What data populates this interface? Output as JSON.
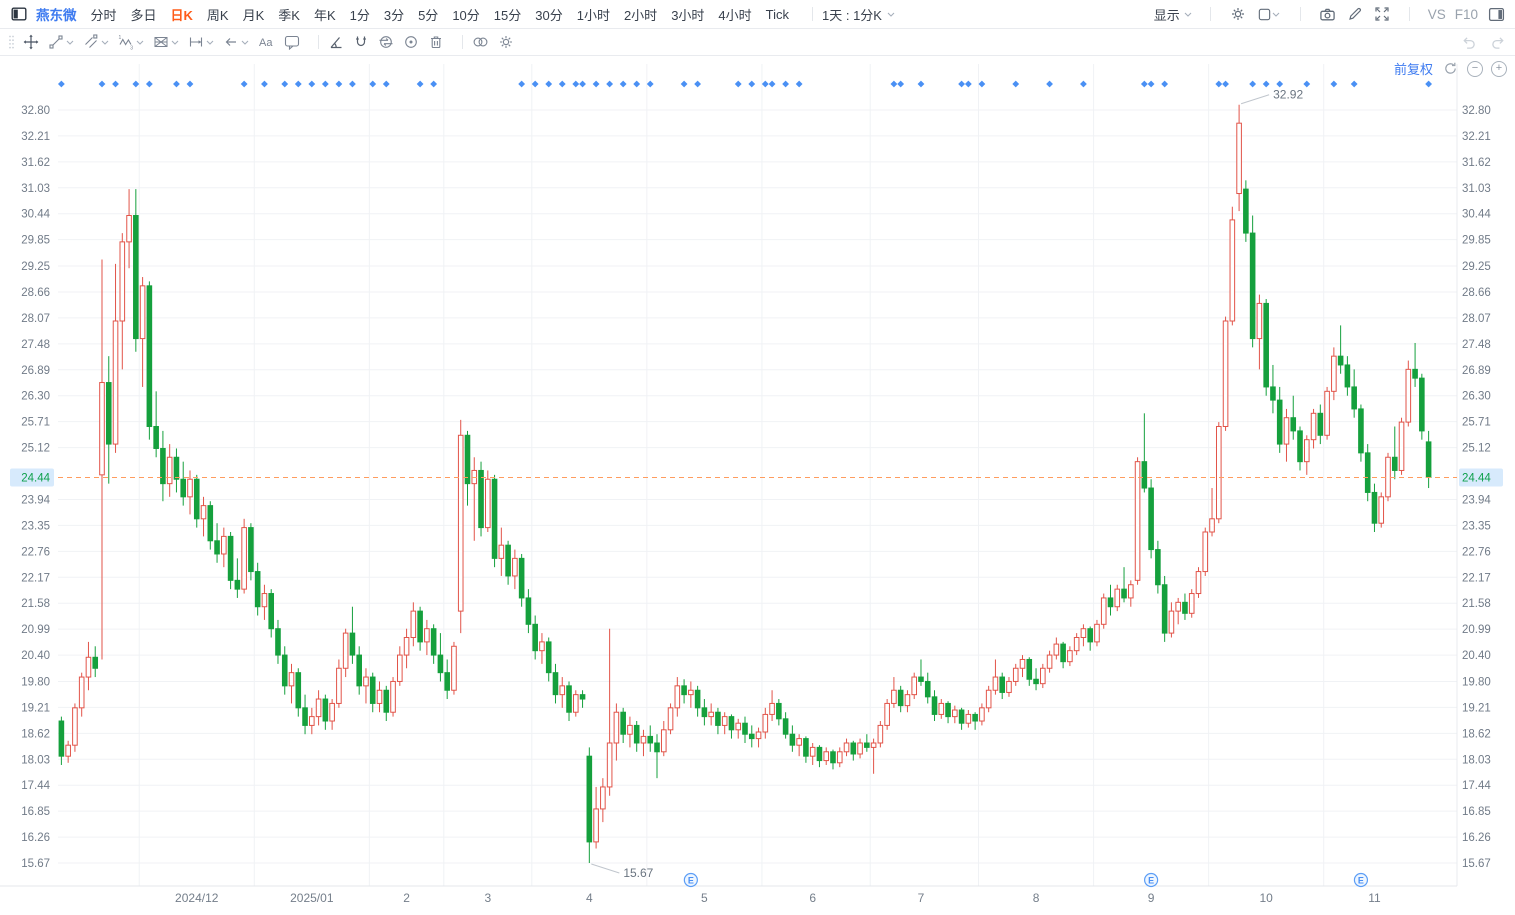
{
  "toolbar": {
    "symbol": "燕东微",
    "periods": [
      "分时",
      "多日",
      "日K",
      "周K",
      "月K",
      "季K",
      "年K",
      "1分",
      "3分",
      "5分",
      "10分",
      "15分",
      "30分",
      "1小时",
      "2小时",
      "3小时",
      "4小时",
      "Tick"
    ],
    "active_period": "日K",
    "combo_label": "1天 : 1分K",
    "display_label": "显示",
    "vs_label": "VS",
    "f10_label": "F10"
  },
  "chart_data": {
    "type": "candlestick",
    "symbol": "燕东微",
    "period": "日K",
    "adjustment": "前复权",
    "y_axis": {
      "top_price": 32.8,
      "bottom_price": 15.67,
      "ticks": [
        "32.80",
        "32.21",
        "31.62",
        "31.03",
        "30.44",
        "29.85",
        "29.25",
        "28.66",
        "28.07",
        "27.48",
        "26.89",
        "26.30",
        "25.71",
        "25.12",
        "23.94",
        "23.35",
        "22.76",
        "22.17",
        "21.58",
        "20.99",
        "20.40",
        "19.80",
        "19.21",
        "18.62",
        "18.03",
        "17.44",
        "16.85",
        "16.26",
        "15.67"
      ]
    },
    "x_axis": {
      "labels": [
        {
          "t": "2024/12",
          "i": 20
        },
        {
          "t": "2025/01",
          "i": 37
        },
        {
          "t": "2",
          "i": 51
        },
        {
          "t": "3",
          "i": 63
        },
        {
          "t": "4",
          "i": 78
        },
        {
          "t": "5",
          "i": 95
        },
        {
          "t": "6",
          "i": 111
        },
        {
          "t": "7",
          "i": 127
        },
        {
          "t": "8",
          "i": 144
        },
        {
          "t": "9",
          "i": 161
        },
        {
          "t": "10",
          "i": 178
        },
        {
          "t": "11",
          "i": 194
        }
      ]
    },
    "month_gridlines": [
      12,
      29,
      46,
      57,
      70,
      87,
      104,
      120,
      136,
      153,
      170,
      187
    ],
    "price_line": {
      "price": 24.44,
      "label": "24.44"
    },
    "annotations": {
      "high": {
        "index": 174,
        "price": 32.92,
        "label": "32.92"
      },
      "low": {
        "index": 78,
        "price": 15.67,
        "label": "15.67"
      }
    },
    "event_markers": {
      "label": "E",
      "indices": [
        93,
        161,
        192
      ]
    },
    "diamond_markers": [
      0,
      6,
      8,
      11,
      13,
      17,
      19,
      27,
      30,
      33,
      35,
      37,
      39,
      41,
      43,
      46,
      48,
      53,
      55,
      68,
      70,
      72,
      74,
      76,
      77,
      79,
      81,
      83,
      85,
      87,
      92,
      94,
      100,
      102,
      104,
      105,
      107,
      109,
      123,
      124,
      127,
      133,
      134,
      136,
      141,
      146,
      151,
      160,
      161,
      163,
      171,
      172,
      176,
      178,
      180,
      184,
      188,
      191,
      202
    ],
    "colors": {
      "up": "#e25449",
      "down": "#15a03d",
      "grid": "#f0f2f5",
      "dash": "#ff9c5e",
      "label_bg": "#d7eafc",
      "label_text": "#0ea04c",
      "axis_text": "#717b88",
      "diamond": "#4a90f4",
      "marker": "#4a90f4",
      "annotation": "#6a7480"
    },
    "candles": [
      [
        18.9,
        19.0,
        17.9,
        18.1
      ],
      [
        18.1,
        18.45,
        17.95,
        18.35
      ],
      [
        18.35,
        19.3,
        18.2,
        19.2
      ],
      [
        19.2,
        20.0,
        19.0,
        19.9
      ],
      [
        19.9,
        20.7,
        19.6,
        20.35
      ],
      [
        20.35,
        20.6,
        19.9,
        20.1
      ],
      [
        24.5,
        29.4,
        20.3,
        26.6
      ],
      [
        26.6,
        27.2,
        24.3,
        25.2
      ],
      [
        25.2,
        29.3,
        25.0,
        28.0
      ],
      [
        28.0,
        30.0,
        26.9,
        29.8
      ],
      [
        29.8,
        31.0,
        29.2,
        30.4
      ],
      [
        30.4,
        31.0,
        27.3,
        27.6
      ],
      [
        27.6,
        29.0,
        26.5,
        28.8
      ],
      [
        28.8,
        28.9,
        25.3,
        25.6
      ],
      [
        25.6,
        26.4,
        24.9,
        25.1
      ],
      [
        25.1,
        25.5,
        23.9,
        24.3
      ],
      [
        24.3,
        25.2,
        24.0,
        24.9
      ],
      [
        24.9,
        25.1,
        24.1,
        24.4
      ],
      [
        24.4,
        24.8,
        23.8,
        24.0
      ],
      [
        24.0,
        24.6,
        23.6,
        24.4
      ],
      [
        24.4,
        24.5,
        23.3,
        23.5
      ],
      [
        23.5,
        24.0,
        23.1,
        23.8
      ],
      [
        23.8,
        23.9,
        22.8,
        23.0
      ],
      [
        23.0,
        23.4,
        22.5,
        22.7
      ],
      [
        22.7,
        23.3,
        22.4,
        23.1
      ],
      [
        23.1,
        23.2,
        21.9,
        22.1
      ],
      [
        22.1,
        22.6,
        21.7,
        21.9
      ],
      [
        21.9,
        23.5,
        21.8,
        23.3
      ],
      [
        23.3,
        23.4,
        22.1,
        22.3
      ],
      [
        22.3,
        22.5,
        21.3,
        21.5
      ],
      [
        21.5,
        22.0,
        21.2,
        21.8
      ],
      [
        21.8,
        21.9,
        20.8,
        21.0
      ],
      [
        21.0,
        21.2,
        20.2,
        20.4
      ],
      [
        20.4,
        20.6,
        19.5,
        19.7
      ],
      [
        19.7,
        20.2,
        19.3,
        20.0
      ],
      [
        20.0,
        20.1,
        19.0,
        19.2
      ],
      [
        19.2,
        19.5,
        18.6,
        18.8
      ],
      [
        18.8,
        19.2,
        18.6,
        19.0
      ],
      [
        19.0,
        19.6,
        18.8,
        19.4
      ],
      [
        19.4,
        19.5,
        18.7,
        18.9
      ],
      [
        18.9,
        19.4,
        18.7,
        19.3
      ],
      [
        19.3,
        20.3,
        19.2,
        20.1
      ],
      [
        20.1,
        21.0,
        19.9,
        20.9
      ],
      [
        20.9,
        21.5,
        20.2,
        20.4
      ],
      [
        20.4,
        20.6,
        19.5,
        19.7
      ],
      [
        19.7,
        20.1,
        19.3,
        19.9
      ],
      [
        19.9,
        20.0,
        19.1,
        19.3
      ],
      [
        19.3,
        19.8,
        19.1,
        19.6
      ],
      [
        19.6,
        19.7,
        18.9,
        19.1
      ],
      [
        19.1,
        19.9,
        19.0,
        19.8
      ],
      [
        19.8,
        20.6,
        19.7,
        20.4
      ],
      [
        20.4,
        21.0,
        20.1,
        20.8
      ],
      [
        20.8,
        21.6,
        20.6,
        21.4
      ],
      [
        21.4,
        21.5,
        20.5,
        20.7
      ],
      [
        20.7,
        21.2,
        20.4,
        21.0
      ],
      [
        21.0,
        21.1,
        20.2,
        20.4
      ],
      [
        20.4,
        20.9,
        19.8,
        20.0
      ],
      [
        20.0,
        20.3,
        19.4,
        19.6
      ],
      [
        19.6,
        20.7,
        19.5,
        20.6
      ],
      [
        21.4,
        25.75,
        20.9,
        25.4
      ],
      [
        25.4,
        25.5,
        23.8,
        24.3
      ],
      [
        24.3,
        24.9,
        23.0,
        24.6
      ],
      [
        24.6,
        24.8,
        23.1,
        23.3
      ],
      [
        23.3,
        24.6,
        23.2,
        24.4
      ],
      [
        24.4,
        24.5,
        22.4,
        22.6
      ],
      [
        22.6,
        23.3,
        22.2,
        22.9
      ],
      [
        22.9,
        23.0,
        22.0,
        22.2
      ],
      [
        22.2,
        22.8,
        21.9,
        22.6
      ],
      [
        22.6,
        22.7,
        21.5,
        21.7
      ],
      [
        21.7,
        21.9,
        20.9,
        21.1
      ],
      [
        21.1,
        21.3,
        20.3,
        20.5
      ],
      [
        20.5,
        20.9,
        20.2,
        20.7
      ],
      [
        20.7,
        20.8,
        19.8,
        20.0
      ],
      [
        20.0,
        20.2,
        19.3,
        19.5
      ],
      [
        19.5,
        19.9,
        19.2,
        19.7
      ],
      [
        19.7,
        19.8,
        18.9,
        19.1
      ],
      [
        19.1,
        19.6,
        19.0,
        19.5
      ],
      [
        19.5,
        19.6,
        19.2,
        19.4
      ],
      [
        18.1,
        18.3,
        15.67,
        16.15
      ],
      [
        16.15,
        17.4,
        16.0,
        16.9
      ],
      [
        16.9,
        17.6,
        16.6,
        17.4
      ],
      [
        17.4,
        21.0,
        17.2,
        18.4
      ],
      [
        18.4,
        19.3,
        18.0,
        19.1
      ],
      [
        19.1,
        19.2,
        18.4,
        18.6
      ],
      [
        18.6,
        19.0,
        18.3,
        18.8
      ],
      [
        18.8,
        18.9,
        18.2,
        18.4
      ],
      [
        18.4,
        18.7,
        18.1,
        18.55
      ],
      [
        18.55,
        18.8,
        18.2,
        18.4
      ],
      [
        18.4,
        18.6,
        17.6,
        18.2
      ],
      [
        18.2,
        18.9,
        18.1,
        18.7
      ],
      [
        18.7,
        19.3,
        18.6,
        19.2
      ],
      [
        19.2,
        19.9,
        19.0,
        19.7
      ],
      [
        19.7,
        19.85,
        19.3,
        19.5
      ],
      [
        19.5,
        19.8,
        19.2,
        19.6
      ],
      [
        19.6,
        19.7,
        19.0,
        19.2
      ],
      [
        19.2,
        19.4,
        18.8,
        19.0
      ],
      [
        19.0,
        19.3,
        18.8,
        19.1
      ],
      [
        19.1,
        19.2,
        18.6,
        18.8
      ],
      [
        18.8,
        19.1,
        18.6,
        19.0
      ],
      [
        19.0,
        19.05,
        18.5,
        18.7
      ],
      [
        18.7,
        18.95,
        18.5,
        18.85
      ],
      [
        18.85,
        19.0,
        18.4,
        18.6
      ],
      [
        18.6,
        18.8,
        18.3,
        18.5
      ],
      [
        18.5,
        18.75,
        18.3,
        18.65
      ],
      [
        18.65,
        19.2,
        18.5,
        19.05
      ],
      [
        19.05,
        19.6,
        18.9,
        19.3
      ],
      [
        19.3,
        19.4,
        18.8,
        18.95
      ],
      [
        18.95,
        19.1,
        18.5,
        18.6
      ],
      [
        18.6,
        18.8,
        18.2,
        18.35
      ],
      [
        18.35,
        18.6,
        18.1,
        18.5
      ],
      [
        18.5,
        18.55,
        17.95,
        18.1
      ],
      [
        18.1,
        18.4,
        17.9,
        18.3
      ],
      [
        18.3,
        18.35,
        17.85,
        18.0
      ],
      [
        18.0,
        18.3,
        17.9,
        18.2
      ],
      [
        18.2,
        18.25,
        17.8,
        17.95
      ],
      [
        17.95,
        18.3,
        17.85,
        18.2
      ],
      [
        18.2,
        18.5,
        18.1,
        18.4
      ],
      [
        18.4,
        18.45,
        18.0,
        18.15
      ],
      [
        18.15,
        18.5,
        18.05,
        18.4
      ],
      [
        18.4,
        18.6,
        18.2,
        18.3
      ],
      [
        18.3,
        18.5,
        17.7,
        18.4
      ],
      [
        18.4,
        18.9,
        18.3,
        18.8
      ],
      [
        18.8,
        19.4,
        18.7,
        19.3
      ],
      [
        19.3,
        19.9,
        19.2,
        19.6
      ],
      [
        19.6,
        19.7,
        19.1,
        19.25
      ],
      [
        19.25,
        19.6,
        19.1,
        19.5
      ],
      [
        19.5,
        20.0,
        19.4,
        19.9
      ],
      [
        19.9,
        20.3,
        19.7,
        19.8
      ],
      [
        19.8,
        20.0,
        19.3,
        19.45
      ],
      [
        19.45,
        19.6,
        18.9,
        19.05
      ],
      [
        19.05,
        19.4,
        18.95,
        19.3
      ],
      [
        19.3,
        19.35,
        18.85,
        19.0
      ],
      [
        19.0,
        19.25,
        18.85,
        19.15
      ],
      [
        19.15,
        19.2,
        18.7,
        18.85
      ],
      [
        18.85,
        19.15,
        18.75,
        19.05
      ],
      [
        19.05,
        19.1,
        18.7,
        18.9
      ],
      [
        18.9,
        19.3,
        18.8,
        19.2
      ],
      [
        19.2,
        19.7,
        19.1,
        19.6
      ],
      [
        19.6,
        20.3,
        19.5,
        19.9
      ],
      [
        19.9,
        20.0,
        19.4,
        19.55
      ],
      [
        19.55,
        19.9,
        19.45,
        19.8
      ],
      [
        19.8,
        20.2,
        19.7,
        20.1
      ],
      [
        20.1,
        20.4,
        19.9,
        20.3
      ],
      [
        20.3,
        20.35,
        19.7,
        19.85
      ],
      [
        19.85,
        20.1,
        19.6,
        19.75
      ],
      [
        19.75,
        20.2,
        19.65,
        20.1
      ],
      [
        20.1,
        20.5,
        20.0,
        20.4
      ],
      [
        20.4,
        20.8,
        20.3,
        20.65
      ],
      [
        20.65,
        20.7,
        20.1,
        20.25
      ],
      [
        20.25,
        20.6,
        20.15,
        20.5
      ],
      [
        20.5,
        20.9,
        20.4,
        20.8
      ],
      [
        20.8,
        21.1,
        20.6,
        21.0
      ],
      [
        21.0,
        21.05,
        20.5,
        20.7
      ],
      [
        20.7,
        21.2,
        20.6,
        21.1
      ],
      [
        21.1,
        21.8,
        21.0,
        21.7
      ],
      [
        21.7,
        22.0,
        21.3,
        21.5
      ],
      [
        21.5,
        22.0,
        21.4,
        21.9
      ],
      [
        21.9,
        22.4,
        21.6,
        21.7
      ],
      [
        21.7,
        22.1,
        21.5,
        22.0
      ],
      [
        22.1,
        24.9,
        22.0,
        24.8
      ],
      [
        24.8,
        25.9,
        24.1,
        24.2
      ],
      [
        24.2,
        24.4,
        22.6,
        22.8
      ],
      [
        22.8,
        23.0,
        21.8,
        22.0
      ],
      [
        22.0,
        22.2,
        20.7,
        20.9
      ],
      [
        20.9,
        21.6,
        20.8,
        21.4
      ],
      [
        21.4,
        21.7,
        21.1,
        21.6
      ],
      [
        21.6,
        21.8,
        21.2,
        21.35
      ],
      [
        21.35,
        21.9,
        21.25,
        21.8
      ],
      [
        21.8,
        22.4,
        21.7,
        22.3
      ],
      [
        22.3,
        23.3,
        22.2,
        23.2
      ],
      [
        23.2,
        24.2,
        23.1,
        23.5
      ],
      [
        23.5,
        25.7,
        23.4,
        25.6
      ],
      [
        25.6,
        28.1,
        25.5,
        28.0
      ],
      [
        28.0,
        30.6,
        27.9,
        30.3
      ],
      [
        30.9,
        32.92,
        30.5,
        32.5
      ],
      [
        31.0,
        31.2,
        29.8,
        30.0
      ],
      [
        30.0,
        30.4,
        27.4,
        27.6
      ],
      [
        27.6,
        28.6,
        26.9,
        28.4
      ],
      [
        28.4,
        28.5,
        26.3,
        26.5
      ],
      [
        26.5,
        27.0,
        25.9,
        26.2
      ],
      [
        26.2,
        26.5,
        25.0,
        25.2
      ],
      [
        25.2,
        26.0,
        24.8,
        25.8
      ],
      [
        25.8,
        26.3,
        25.3,
        25.5
      ],
      [
        25.5,
        25.6,
        24.6,
        24.8
      ],
      [
        24.8,
        25.4,
        24.5,
        25.3
      ],
      [
        25.3,
        26.0,
        25.1,
        25.9
      ],
      [
        25.9,
        26.1,
        25.2,
        25.4
      ],
      [
        25.4,
        26.5,
        25.3,
        26.4
      ],
      [
        26.4,
        27.4,
        26.2,
        27.2
      ],
      [
        27.2,
        27.9,
        26.8,
        27.0
      ],
      [
        27.0,
        27.2,
        26.3,
        26.5
      ],
      [
        26.5,
        26.9,
        25.8,
        26.0
      ],
      [
        26.0,
        26.1,
        24.8,
        25.0
      ],
      [
        25.0,
        25.2,
        23.9,
        24.1
      ],
      [
        24.1,
        24.3,
        23.2,
        23.4
      ],
      [
        23.4,
        24.1,
        23.3,
        24.0
      ],
      [
        24.0,
        25.0,
        23.9,
        24.9
      ],
      [
        24.9,
        25.6,
        24.4,
        24.6
      ],
      [
        24.6,
        25.8,
        24.5,
        25.7
      ],
      [
        25.7,
        27.1,
        25.6,
        26.9
      ],
      [
        26.9,
        27.5,
        26.5,
        26.7
      ],
      [
        26.7,
        26.8,
        25.3,
        25.5
      ],
      [
        25.25,
        25.5,
        24.2,
        24.44
      ]
    ]
  }
}
